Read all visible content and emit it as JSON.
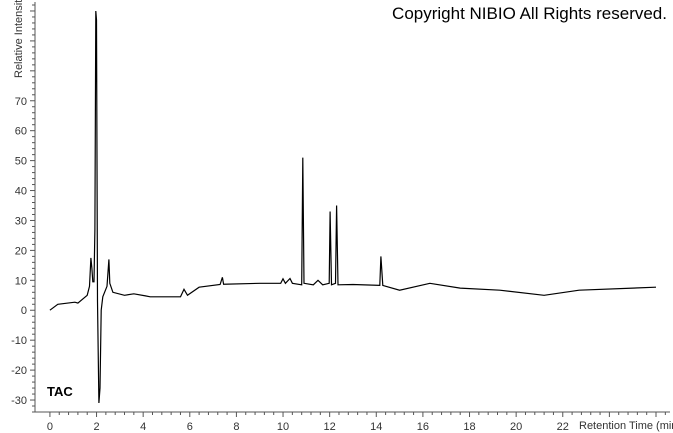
{
  "chart_data": {
    "type": "line",
    "xlabel": "Retention Time (min)",
    "ylabel": "Relative Intensity",
    "xlim": [
      -0.64,
      26.6
    ],
    "ylim": [
      -34,
      103
    ],
    "xticks": [
      0,
      2,
      4,
      6,
      8,
      10,
      12,
      14,
      16,
      18,
      20,
      22
    ],
    "yticks": [
      -30,
      -20,
      -10,
      0,
      10,
      20,
      30,
      40,
      50,
      60,
      70
    ],
    "grid": false,
    "series": [
      {
        "color": "#000000",
        "points": [
          [
            0,
            0
          ],
          [
            0.34,
            2
          ],
          [
            1.07,
            2.7
          ],
          [
            1.2,
            2.4
          ],
          [
            1.6,
            5
          ],
          [
            1.7,
            8
          ],
          [
            1.76,
            17.5
          ],
          [
            1.8,
            14
          ],
          [
            1.84,
            9.5
          ],
          [
            1.89,
            9.5
          ],
          [
            1.93,
            27
          ],
          [
            1.97,
            100
          ],
          [
            2.0,
            97
          ],
          [
            2.04,
            3
          ],
          [
            2.1,
            -31
          ],
          [
            2.15,
            -26
          ],
          [
            2.2,
            0
          ],
          [
            2.27,
            4.5
          ],
          [
            2.45,
            8
          ],
          [
            2.53,
            17
          ],
          [
            2.57,
            9
          ],
          [
            2.7,
            6
          ],
          [
            3.2,
            5
          ],
          [
            3.6,
            5.5
          ],
          [
            4.1,
            4.8
          ],
          [
            4.3,
            4.5
          ],
          [
            5.6,
            4.5
          ],
          [
            5.75,
            7
          ],
          [
            5.9,
            5
          ],
          [
            6.4,
            7.7
          ],
          [
            7.3,
            8.6
          ],
          [
            7.4,
            11
          ],
          [
            7.45,
            8.7
          ],
          [
            9.0,
            9
          ],
          [
            9.9,
            9
          ],
          [
            10.0,
            10.5
          ],
          [
            10.1,
            9
          ],
          [
            10.3,
            10.6
          ],
          [
            10.4,
            9
          ],
          [
            10.8,
            8.5
          ],
          [
            10.85,
            51
          ],
          [
            10.9,
            9
          ],
          [
            11.3,
            8.5
          ],
          [
            11.5,
            10
          ],
          [
            11.7,
            8.5
          ],
          [
            11.98,
            9
          ],
          [
            12.02,
            33
          ],
          [
            12.08,
            8.5
          ],
          [
            12.25,
            9
          ],
          [
            12.3,
            35
          ],
          [
            12.36,
            8.5
          ],
          [
            13.0,
            8.6
          ],
          [
            14.15,
            8.3
          ],
          [
            14.2,
            18
          ],
          [
            14.28,
            8.3
          ],
          [
            15,
            6.7
          ],
          [
            16.3,
            9
          ],
          [
            17.6,
            7.4
          ],
          [
            19.3,
            6.7
          ],
          [
            21.2,
            5
          ],
          [
            22.7,
            6.7
          ],
          [
            26,
            7.7
          ]
        ]
      }
    ],
    "annotations": [
      "TAC"
    ]
  },
  "copyright": "Copyright NIBIO All Rights reserved."
}
